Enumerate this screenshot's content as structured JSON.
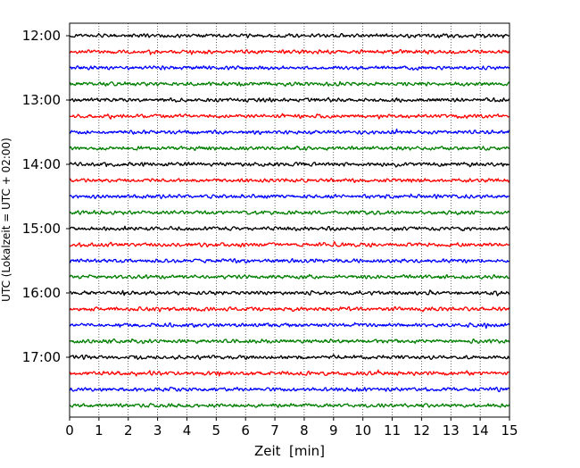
{
  "chart_data": {
    "type": "line",
    "title": "",
    "xlabel": "Zeit  [min]",
    "ylabel": "UTC (Lokalzeit = UTC + 02:00)",
    "xlim": [
      0,
      15
    ],
    "x_ticks": [
      "0",
      "1",
      "2",
      "3",
      "4",
      "5",
      "6",
      "7",
      "8",
      "9",
      "10",
      "11",
      "12",
      "13",
      "14",
      "15"
    ],
    "y_tick_labels": [
      "12:00",
      "13:00",
      "14:00",
      "15:00",
      "16:00",
      "17:00"
    ],
    "trace_start_times": [
      "12:00",
      "12:15",
      "12:30",
      "12:45",
      "13:00",
      "13:15",
      "13:30",
      "13:45",
      "14:00",
      "14:15",
      "14:30",
      "14:45",
      "15:00",
      "15:15",
      "15:30",
      "15:45",
      "16:00",
      "16:15",
      "16:30",
      "16:45",
      "17:00",
      "17:15",
      "17:30",
      "17:45"
    ],
    "trace_minutes": 15,
    "series_colors": [
      "#000000",
      "#ff0000",
      "#0000ff",
      "#007f00"
    ],
    "grid": "vertical-dotted",
    "legend": "none"
  }
}
